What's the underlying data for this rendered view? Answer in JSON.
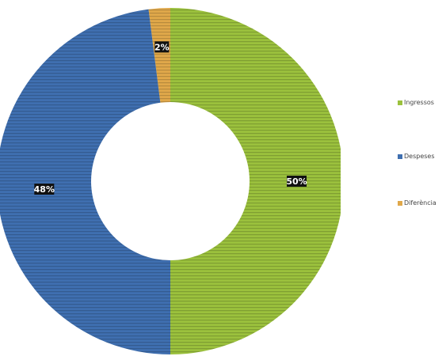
{
  "chart_data": {
    "type": "pie",
    "donut": true,
    "categories": [
      "Ingressos",
      "Despeses",
      "Diferència"
    ],
    "values": [
      50,
      48,
      2
    ],
    "value_labels": [
      "50%",
      "48%",
      "2%"
    ],
    "colors": [
      "#9bc13d",
      "#3f6fb0",
      "#e0a84a"
    ],
    "title": "",
    "legend_position": "right",
    "legend": {
      "items": [
        {
          "label": "Ingressos",
          "color": "#9bc13d"
        },
        {
          "label": "Despeses",
          "color": "#3f6fb0"
        },
        {
          "label": "Diferència",
          "color": "#e0a84a"
        }
      ]
    }
  }
}
